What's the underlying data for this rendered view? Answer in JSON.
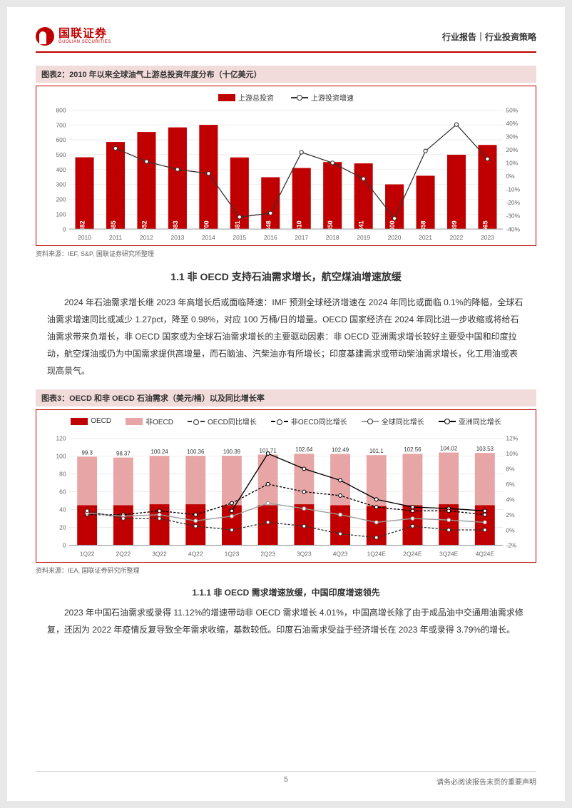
{
  "header": {
    "logo_cn": "国联证券",
    "logo_en": "GUOLIAN SECURITIES",
    "right": "行业报告｜行业投资策略"
  },
  "chart1": {
    "title": "图表2：2010 年以来全球油气上游总投资年度分布（十亿美元）",
    "type": "bar+line",
    "legend_bar": "上游总投资",
    "legend_line": "上游投资增速",
    "categories": [
      "2010",
      "2011",
      "2012",
      "2013",
      "2014",
      "2015",
      "2016",
      "2017",
      "2018",
      "2019",
      "2020",
      "2021",
      "2022",
      "2023"
    ],
    "values": [
      482,
      585,
      652,
      683,
      700,
      481,
      348,
      410,
      450,
      441,
      300,
      358,
      499,
      565
    ],
    "growth_pct": [
      null,
      21,
      11,
      5,
      2,
      -31,
      -28,
      18,
      10,
      -2,
      -32,
      19,
      39,
      13
    ],
    "y1_ticks": [
      0,
      100,
      200,
      300,
      400,
      500,
      600,
      700,
      800
    ],
    "y2_ticks": [
      -40,
      -30,
      -20,
      -10,
      0,
      10,
      20,
      30,
      40,
      50
    ],
    "y1_max": 800,
    "y2_min": -40,
    "y2_max": 50,
    "bar_color": "#c00000",
    "line_color": "#333333",
    "grid_color": "#e0e0e0",
    "value_label_color": "#ffffff",
    "source": "资料来源：IEF, S&P, 国联证券研究所整理"
  },
  "section1": {
    "title": "1.1 非 OECD 支持石油需求增长，航空煤油增速放缓",
    "body": "2024 年石油需求增长继 2023 年高增长后或面临降速：IMF 预测全球经济增速在 2024 年同比或面临 0.1%的降幅，全球石油需求增速同比或减少 1.27pct，降至 0.98%，对应 100 万桶/日的增量。OECD 国家经济在 2024 年同比进一步收缩或将给石油需求带来负增长，非 OECD 国家或为全球石油需求增长的主要驱动因素：非 OECD 亚洲需求增长较好主要受中国和印度拉动，航空煤油或仍为中国需求提供高增量，而石脑油、汽柴油亦有所增长；印度基建需求或带动柴油需求增长，化工用油或表现高景气。"
  },
  "chart2": {
    "title": "图表3：OECD 和非 OECD 石油需求（美元/桶）以及同比增长率",
    "type": "stacked-bar+multiline",
    "legend": {
      "oecd": "OECD",
      "non_oecd": "非OECD",
      "oecd_growth": "OECD同比增长",
      "non_oecd_growth": "非OECD同比增长",
      "global_growth": "全球同比增长",
      "asia_growth": "亚洲同比增长"
    },
    "categories": [
      "1Q22",
      "2Q22",
      "3Q22",
      "4Q22",
      "1Q23",
      "2Q23",
      "3Q23",
      "4Q23",
      "1Q24E",
      "2Q24E",
      "3Q24E",
      "4Q24E"
    ],
    "totals": [
      99.3,
      98.37,
      100.24,
      100.36,
      100.39,
      101.71,
      102.64,
      102.49,
      101.1,
      102.56,
      104.02,
      103.53
    ],
    "oecd_vals": [
      45,
      45,
      46,
      46,
      45,
      45,
      46,
      45,
      44,
      45,
      46,
      45
    ],
    "nonoecd_vals": [
      54.3,
      53.37,
      54.24,
      54.36,
      55.39,
      56.71,
      56.64,
      57.49,
      57.1,
      57.56,
      58.02,
      58.53
    ],
    "oecd_growth": [
      2.5,
      1.5,
      1.5,
      0.5,
      0.0,
      1.0,
      0.5,
      -0.5,
      -1.0,
      0.5,
      0.0,
      0.0
    ],
    "non_oecd_growth": [
      2.0,
      2.0,
      2.5,
      2.0,
      3.5,
      6.0,
      5.0,
      4.5,
      3.0,
      2.5,
      2.5,
      2.0
    ],
    "global_growth": [
      2.2,
      1.8,
      2.0,
      1.2,
      1.8,
      3.5,
      2.8,
      2.0,
      1.0,
      1.5,
      1.3,
      1.0
    ],
    "asia_growth": [
      null,
      null,
      null,
      null,
      2.5,
      10.0,
      8.0,
      6.5,
      4.0,
      3.0,
      2.8,
      2.5
    ],
    "y1_max": 120,
    "y1_ticks": [
      0,
      20,
      40,
      60,
      80,
      100,
      120
    ],
    "y2_min": -2,
    "y2_max": 12,
    "y2_ticks": [
      -2,
      0,
      2,
      4,
      6,
      8,
      10,
      12
    ],
    "colors": {
      "oecd": "#c00000",
      "non_oecd": "#e8a5a5",
      "oecd_line": "#333333",
      "non_oecd_line": "#000000",
      "global_line": "#999999",
      "asia_line": "#000000"
    },
    "source": "资料来源：IEA, 国联证券研究所整理"
  },
  "section2": {
    "title": "1.1.1 非 OECD 需求增速放缓，中国印度增速领先",
    "body": "2023 年中国石油需求或录得 11.12%的增速带动非 OECD 需求增长 4.01%，中国高增长除了由于成品油中交通用油需求修复，还因为 2022 年疫情反复导致全年需求收缩，基数较低。印度石油需求受益于经济增长在 2023 年或录得 3.79%的增长。"
  },
  "footer": {
    "page": "5",
    "disclaimer": "请务必阅读报告末页的重要声明"
  }
}
